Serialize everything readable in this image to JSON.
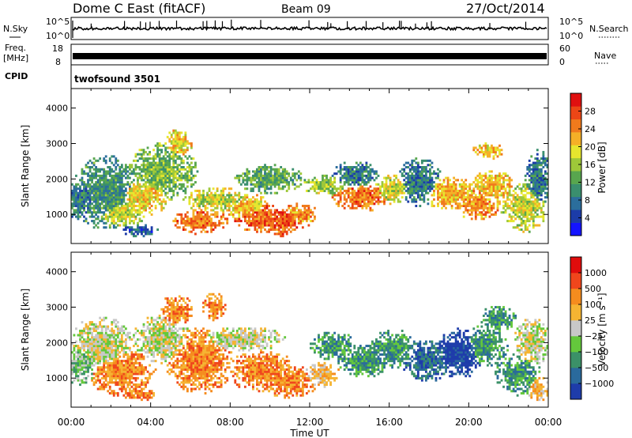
{
  "header": {
    "station": "Dome C East (fitACF)",
    "beam": "Beam 09",
    "date": "27/Oct/2014"
  },
  "top_panels": {
    "nsky_label": "N.Sky",
    "nsky_ticks": [
      "10^5",
      "10^0"
    ],
    "nsearch_label": "N.Search",
    "nsearch_ticks": [
      "10^5",
      "10^0"
    ],
    "freq_label_1": "Freq.",
    "freq_label_2": "[MHz]",
    "freq_ticks": [
      "18",
      "8"
    ],
    "nave_label": "Nave",
    "nave_ticks": [
      "60",
      "0"
    ],
    "cpid_label": "CPID",
    "cpid_value": "twofsound 3501"
  },
  "chart_data": [
    {
      "type": "heatmap",
      "name": "power",
      "ylabel": "Slant Range [km]",
      "xlabel": "Time UT",
      "x_ticks": [
        "00:00",
        "04:00",
        "08:00",
        "12:00",
        "16:00",
        "20:00",
        "00:00"
      ],
      "xlim_hours": [
        0,
        24
      ],
      "y_ticks": [
        1000,
        2000,
        3000,
        4000
      ],
      "ylim": [
        180,
        4550
      ],
      "colorbar": {
        "label": "Power [dB]",
        "ticks": [
          "28",
          "24",
          "20",
          "16",
          "12",
          "8",
          "4"
        ],
        "range": [
          0,
          32
        ],
        "colors": [
          "#1414ff",
          "#1c3ca8",
          "#2b6e9c",
          "#3a8f6e",
          "#58a64e",
          "#9ec839",
          "#e6e62e",
          "#f5b027",
          "#f07a1c",
          "#ec4616",
          "#e01010"
        ]
      },
      "blobs": [
        {
          "t": 0.5,
          "r": 1450,
          "wt": 1.0,
          "wr": 500,
          "level": 8
        },
        {
          "t": 1.8,
          "r": 1600,
          "wt": 1.5,
          "wr": 900,
          "level": 10
        },
        {
          "t": 2.5,
          "r": 1050,
          "wt": 1.2,
          "wr": 350,
          "level": 18
        },
        {
          "t": 3.6,
          "r": 1500,
          "wt": 1.2,
          "wr": 450,
          "level": 20
        },
        {
          "t": 3.5,
          "r": 550,
          "wt": 0.8,
          "wr": 150,
          "level": 6
        },
        {
          "t": 4.6,
          "r": 2200,
          "wt": 1.5,
          "wr": 700,
          "level": 14
        },
        {
          "t": 5.4,
          "r": 3000,
          "wt": 0.6,
          "wr": 350,
          "level": 20
        },
        {
          "t": 6.5,
          "r": 800,
          "wt": 1.2,
          "wr": 300,
          "level": 26
        },
        {
          "t": 7.4,
          "r": 1400,
          "wt": 1.5,
          "wr": 300,
          "level": 18
        },
        {
          "t": 8.8,
          "r": 1200,
          "wt": 1.0,
          "wr": 350,
          "level": 22
        },
        {
          "t": 9.6,
          "r": 900,
          "wt": 1.2,
          "wr": 350,
          "level": 27
        },
        {
          "t": 10.7,
          "r": 800,
          "wt": 0.9,
          "wr": 350,
          "level": 28
        },
        {
          "t": 10.0,
          "r": 2000,
          "wt": 1.5,
          "wr": 350,
          "level": 12
        },
        {
          "t": 11.5,
          "r": 1000,
          "wt": 0.8,
          "wr": 300,
          "level": 24
        },
        {
          "t": 12.8,
          "r": 1800,
          "wt": 1.0,
          "wr": 250,
          "level": 16
        },
        {
          "t": 14.6,
          "r": 1500,
          "wt": 1.3,
          "wr": 350,
          "level": 26
        },
        {
          "t": 14.3,
          "r": 2100,
          "wt": 1.0,
          "wr": 350,
          "level": 8
        },
        {
          "t": 16.2,
          "r": 1700,
          "wt": 0.8,
          "wr": 350,
          "level": 18
        },
        {
          "t": 17.5,
          "r": 1900,
          "wt": 1.0,
          "wr": 600,
          "level": 8
        },
        {
          "t": 19.0,
          "r": 1600,
          "wt": 1.2,
          "wr": 400,
          "level": 22
        },
        {
          "t": 20.5,
          "r": 1300,
          "wt": 1.0,
          "wr": 400,
          "level": 24
        },
        {
          "t": 21.2,
          "r": 1800,
          "wt": 0.9,
          "wr": 400,
          "level": 22
        },
        {
          "t": 21.0,
          "r": 2800,
          "wt": 0.7,
          "wr": 200,
          "level": 22
        },
        {
          "t": 22.8,
          "r": 1200,
          "wt": 1.0,
          "wr": 600,
          "level": 18
        },
        {
          "t": 23.5,
          "r": 2000,
          "wt": 0.6,
          "wr": 700,
          "level": 8
        }
      ]
    },
    {
      "type": "heatmap",
      "name": "velocity",
      "ylabel": "Slant Range [km]",
      "xlabel": "Time UT",
      "x_ticks": [
        "00:00",
        "04:00",
        "08:00",
        "12:00",
        "16:00",
        "20:00",
        "00:00"
      ],
      "xlim_hours": [
        0,
        24
      ],
      "y_ticks": [
        1000,
        2000,
        3000,
        4000
      ],
      "ylim": [
        180,
        4550
      ],
      "colorbar": {
        "label": "Velocity [m s⁻¹]",
        "ticks": [
          "1000",
          "500",
          "100",
          "25",
          "−25",
          "−100",
          "−500",
          "−1000"
        ],
        "colors": [
          "#1e3caa",
          "#2a6a9c",
          "#3b9168",
          "#64c83c",
          "#c8c8c8",
          "#f5b432",
          "#f58c1e",
          "#f0461c",
          "#e00c0c"
        ]
      },
      "blobs": [
        {
          "t": 0.5,
          "r": 1400,
          "wt": 0.9,
          "wr": 500,
          "level": 3
        },
        {
          "t": 1.5,
          "r": 1900,
          "wt": 1.5,
          "wr": 700,
          "level": 4
        },
        {
          "t": 2.5,
          "r": 1200,
          "wt": 1.5,
          "wr": 600,
          "level": 6
        },
        {
          "t": 3.5,
          "r": 550,
          "wt": 0.8,
          "wr": 150,
          "level": 6
        },
        {
          "t": 4.6,
          "r": 2100,
          "wt": 1.3,
          "wr": 600,
          "level": 4
        },
        {
          "t": 5.3,
          "r": 2900,
          "wt": 0.7,
          "wr": 400,
          "level": 6
        },
        {
          "t": 6.5,
          "r": 1500,
          "wt": 1.5,
          "wr": 800,
          "level": 6
        },
        {
          "t": 7.2,
          "r": 3000,
          "wt": 0.5,
          "wr": 350,
          "level": 6
        },
        {
          "t": 8.5,
          "r": 2100,
          "wt": 2.0,
          "wr": 300,
          "level": 4
        },
        {
          "t": 9.6,
          "r": 1200,
          "wt": 1.5,
          "wr": 500,
          "level": 6
        },
        {
          "t": 11.0,
          "r": 900,
          "wt": 1.2,
          "wr": 400,
          "level": 6
        },
        {
          "t": 12.6,
          "r": 1100,
          "wt": 0.8,
          "wr": 300,
          "level": 5
        },
        {
          "t": 13.2,
          "r": 1900,
          "wt": 1.0,
          "wr": 350,
          "level": 2
        },
        {
          "t": 14.8,
          "r": 1500,
          "wt": 1.2,
          "wr": 400,
          "level": 2
        },
        {
          "t": 16.2,
          "r": 1800,
          "wt": 1.0,
          "wr": 500,
          "level": 2
        },
        {
          "t": 18.0,
          "r": 1500,
          "wt": 1.2,
          "wr": 500,
          "level": 1
        },
        {
          "t": 19.5,
          "r": 1700,
          "wt": 1.2,
          "wr": 600,
          "level": 0
        },
        {
          "t": 20.8,
          "r": 1900,
          "wt": 1.0,
          "wr": 500,
          "level": 2
        },
        {
          "t": 21.5,
          "r": 2700,
          "wt": 0.8,
          "wr": 300,
          "level": 2
        },
        {
          "t": 22.5,
          "r": 1100,
          "wt": 1.0,
          "wr": 500,
          "level": 2
        },
        {
          "t": 23.5,
          "r": 700,
          "wt": 0.5,
          "wr": 300,
          "level": 5
        },
        {
          "t": 23.2,
          "r": 2000,
          "wt": 0.8,
          "wr": 600,
          "level": 4
        }
      ]
    }
  ]
}
